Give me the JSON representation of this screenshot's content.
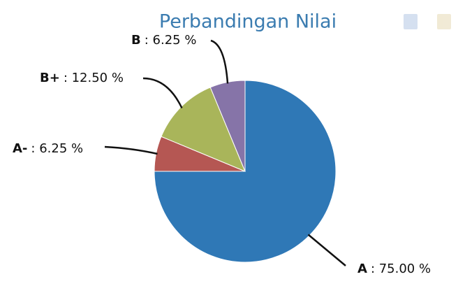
{
  "chart_data": {
    "type": "pie",
    "title": "Perbandingan Nilai",
    "categories": [
      "A",
      "A-",
      "B+",
      "B"
    ],
    "values": [
      75.0,
      6.25,
      12.5,
      6.25
    ],
    "value_labels": [
      ": 75.00 %",
      ": 6.25 %",
      ": 12.50 %",
      ": 6.25 %"
    ],
    "colors": [
      "#2f78b6",
      "#b55753",
      "#a9b55a",
      "#8674a8"
    ]
  }
}
